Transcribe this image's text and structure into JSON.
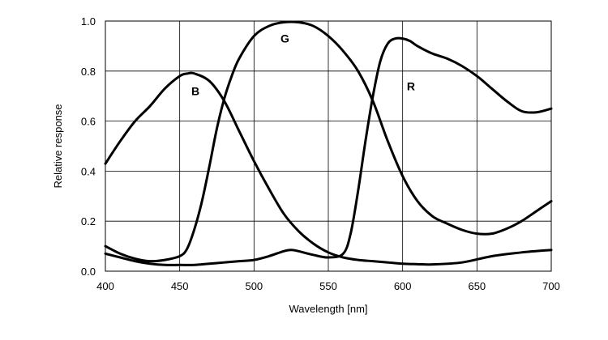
{
  "chart_data": {
    "type": "line",
    "title": "",
    "xlabel": "Wavelength [nm]",
    "ylabel": "Relative response",
    "xlim": [
      400,
      700
    ],
    "ylim": [
      0,
      1.0
    ],
    "grid": true,
    "legend": "none",
    "x_ticks": [
      "400",
      "450",
      "500",
      "550",
      "600",
      "650",
      "700"
    ],
    "x_tick_values": [
      400,
      450,
      500,
      550,
      600,
      650,
      700
    ],
    "y_ticks": [
      "0.0",
      "0.2",
      "0.4",
      "0.6",
      "0.8",
      "1.0"
    ],
    "y_tick_values": [
      0,
      0.2,
      0.4,
      0.6,
      0.8,
      1.0
    ],
    "series": [
      {
        "name": "B",
        "label_at": [
          460,
          0.72
        ],
        "x": [
          400,
          410,
          420,
          430,
          440,
          450,
          455,
          460,
          470,
          480,
          490,
          500,
          510,
          520,
          530,
          540,
          550,
          560,
          570,
          580,
          590,
          600,
          610,
          620,
          640,
          660,
          680,
          700
        ],
        "y": [
          0.43,
          0.52,
          0.6,
          0.66,
          0.73,
          0.78,
          0.79,
          0.79,
          0.76,
          0.68,
          0.56,
          0.44,
          0.33,
          0.23,
          0.16,
          0.11,
          0.075,
          0.055,
          0.045,
          0.04,
          0.035,
          0.03,
          0.028,
          0.027,
          0.035,
          0.06,
          0.075,
          0.085
        ]
      },
      {
        "name": "G",
        "label_at": [
          520,
          0.93
        ],
        "x": [
          400,
          410,
          420,
          430,
          440,
          450,
          455,
          460,
          465,
          470,
          475,
          480,
          485,
          490,
          500,
          510,
          520,
          530,
          540,
          550,
          560,
          570,
          580,
          590,
          600,
          610,
          620,
          630,
          640,
          650,
          660,
          670,
          680,
          690,
          700
        ],
        "y": [
          0.1,
          0.07,
          0.05,
          0.04,
          0.045,
          0.06,
          0.09,
          0.17,
          0.28,
          0.42,
          0.57,
          0.69,
          0.78,
          0.85,
          0.94,
          0.98,
          0.995,
          0.995,
          0.98,
          0.94,
          0.88,
          0.8,
          0.68,
          0.52,
          0.38,
          0.28,
          0.22,
          0.19,
          0.165,
          0.15,
          0.15,
          0.17,
          0.2,
          0.24,
          0.28
        ]
      },
      {
        "name": "R",
        "label_at": [
          605,
          0.74
        ],
        "x": [
          400,
          410,
          420,
          430,
          440,
          450,
          460,
          470,
          480,
          490,
          500,
          510,
          520,
          525,
          530,
          540,
          550,
          560,
          565,
          570,
          575,
          580,
          585,
          590,
          595,
          600,
          605,
          610,
          620,
          630,
          640,
          650,
          660,
          670,
          680,
          690,
          700
        ],
        "y": [
          0.07,
          0.055,
          0.04,
          0.03,
          0.025,
          0.025,
          0.025,
          0.03,
          0.035,
          0.04,
          0.045,
          0.06,
          0.08,
          0.085,
          0.08,
          0.065,
          0.055,
          0.07,
          0.15,
          0.32,
          0.52,
          0.7,
          0.84,
          0.91,
          0.93,
          0.93,
          0.92,
          0.9,
          0.87,
          0.85,
          0.82,
          0.78,
          0.73,
          0.68,
          0.64,
          0.635,
          0.65
        ]
      }
    ]
  }
}
